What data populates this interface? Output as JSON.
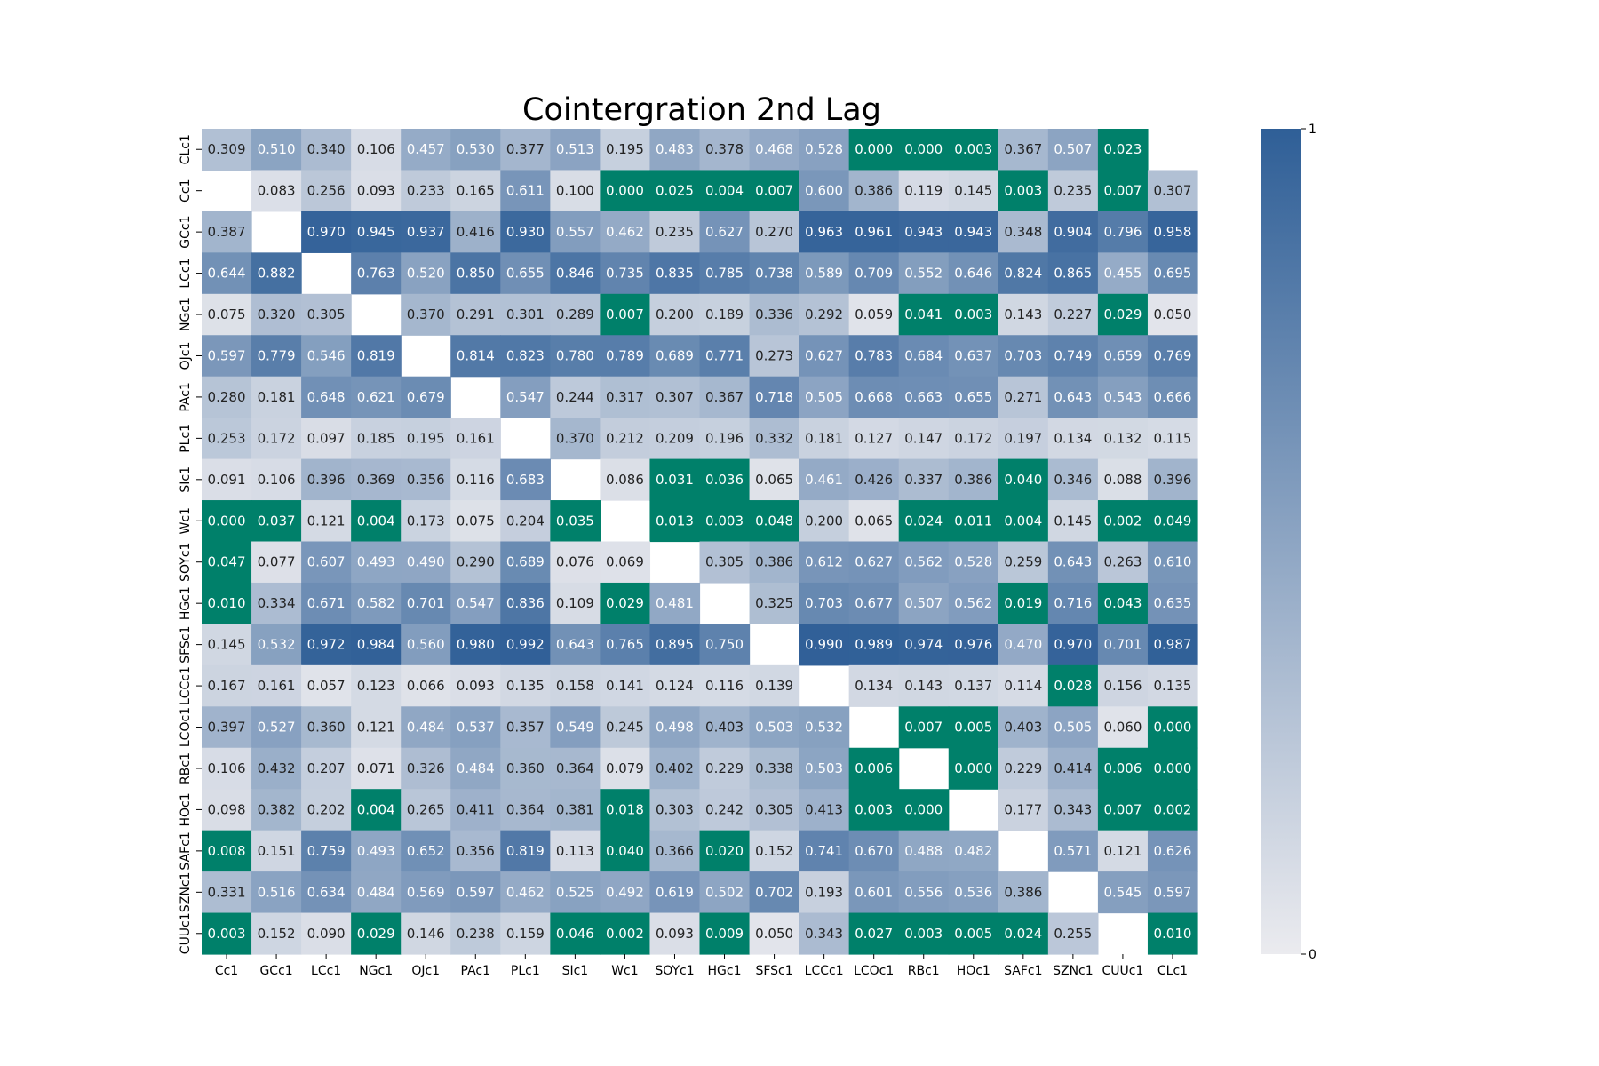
{
  "chart_data": {
    "type": "heatmap",
    "title": "Cointergration 2nd Lag",
    "xlabel": "",
    "ylabel": "",
    "x_labels": [
      "Cc1",
      "GCc1",
      "LCc1",
      "NGc1",
      "OJc1",
      "PAc1",
      "PLc1",
      "SIc1",
      "Wc1",
      "SOYc1",
      "HGc1",
      "SFSc1",
      "LCCc1",
      "LCOc1",
      "RBc1",
      "HOc1",
      "SAFc1",
      "SZNc1",
      "CUUc1",
      "CLc1"
    ],
    "y_labels": [
      "CLc1",
      "Cc1",
      "GCc1",
      "LCc1",
      "NGc1",
      "OJc1",
      "PAc1",
      "PLc1",
      "SIc1",
      "Wc1",
      "SOYc1",
      "HGc1",
      "SFSc1",
      "LCCc1",
      "LCOc1",
      "RBc1",
      "HOc1",
      "SAFc1",
      "SZNc1",
      "CUUc1"
    ],
    "values": [
      [
        "0.309",
        "0.510",
        "0.340",
        "0.106",
        "0.457",
        "0.530",
        "0.377",
        "0.513",
        "0.195",
        "0.483",
        "0.378",
        "0.468",
        "0.528",
        "0.000",
        "0.000",
        "0.003",
        "0.367",
        "0.507",
        "0.023",
        null
      ],
      [
        null,
        "0.083",
        "0.256",
        "0.093",
        "0.233",
        "0.165",
        "0.611",
        "0.100",
        "0.000",
        "0.025",
        "0.004",
        "0.007",
        "0.600",
        "0.386",
        "0.119",
        "0.145",
        "0.003",
        "0.235",
        "0.007",
        "0.307"
      ],
      [
        "0.387",
        null,
        "0.970",
        "0.945",
        "0.937",
        "0.416",
        "0.930",
        "0.557",
        "0.462",
        "0.235",
        "0.627",
        "0.270",
        "0.963",
        "0.961",
        "0.943",
        "0.943",
        "0.348",
        "0.904",
        "0.796",
        "0.958"
      ],
      [
        "0.644",
        "0.882",
        null,
        "0.763",
        "0.520",
        "0.850",
        "0.655",
        "0.846",
        "0.735",
        "0.835",
        "0.785",
        "0.738",
        "0.589",
        "0.709",
        "0.552",
        "0.646",
        "0.824",
        "0.865",
        "0.455",
        "0.695"
      ],
      [
        "0.075",
        "0.320",
        "0.305",
        null,
        "0.370",
        "0.291",
        "0.301",
        "0.289",
        "0.007",
        "0.200",
        "0.189",
        "0.336",
        "0.292",
        "0.059",
        "0.041",
        "0.003",
        "0.143",
        "0.227",
        "0.029",
        "0.050"
      ],
      [
        "0.597",
        "0.779",
        "0.546",
        "0.819",
        null,
        "0.814",
        "0.823",
        "0.780",
        "0.789",
        "0.689",
        "0.771",
        "0.273",
        "0.627",
        "0.783",
        "0.684",
        "0.637",
        "0.703",
        "0.749",
        "0.659",
        "0.769"
      ],
      [
        "0.280",
        "0.181",
        "0.648",
        "0.621",
        "0.679",
        null,
        "0.547",
        "0.244",
        "0.317",
        "0.307",
        "0.367",
        "0.718",
        "0.505",
        "0.668",
        "0.663",
        "0.655",
        "0.271",
        "0.643",
        "0.543",
        "0.666"
      ],
      [
        "0.253",
        "0.172",
        "0.097",
        "0.185",
        "0.195",
        "0.161",
        null,
        "0.370",
        "0.212",
        "0.209",
        "0.196",
        "0.332",
        "0.181",
        "0.127",
        "0.147",
        "0.172",
        "0.197",
        "0.134",
        "0.132",
        "0.115"
      ],
      [
        "0.091",
        "0.106",
        "0.396",
        "0.369",
        "0.356",
        "0.116",
        "0.683",
        null,
        "0.086",
        "0.031",
        "0.036",
        "0.065",
        "0.461",
        "0.426",
        "0.337",
        "0.386",
        "0.040",
        "0.346",
        "0.088",
        "0.396"
      ],
      [
        "0.000",
        "0.037",
        "0.121",
        "0.004",
        "0.173",
        "0.075",
        "0.204",
        "0.035",
        null,
        "0.013",
        "0.003",
        "0.048",
        "0.200",
        "0.065",
        "0.024",
        "0.011",
        "0.004",
        "0.145",
        "0.002",
        "0.049"
      ],
      [
        "0.047",
        "0.077",
        "0.607",
        "0.493",
        "0.490",
        "0.290",
        "0.689",
        "0.076",
        "0.069",
        null,
        "0.305",
        "0.386",
        "0.612",
        "0.627",
        "0.562",
        "0.528",
        "0.259",
        "0.643",
        "0.263",
        "0.610"
      ],
      [
        "0.010",
        "0.334",
        "0.671",
        "0.582",
        "0.701",
        "0.547",
        "0.836",
        "0.109",
        "0.029",
        "0.481",
        null,
        "0.325",
        "0.703",
        "0.677",
        "0.507",
        "0.562",
        "0.019",
        "0.716",
        "0.043",
        "0.635"
      ],
      [
        "0.145",
        "0.532",
        "0.972",
        "0.984",
        "0.560",
        "0.980",
        "0.992",
        "0.643",
        "0.765",
        "0.895",
        "0.750",
        null,
        "0.990",
        "0.989",
        "0.974",
        "0.976",
        "0.470",
        "0.970",
        "0.701",
        "0.987"
      ],
      [
        "0.167",
        "0.161",
        "0.057",
        "0.123",
        "0.066",
        "0.093",
        "0.135",
        "0.158",
        "0.141",
        "0.124",
        "0.116",
        "0.139",
        null,
        "0.134",
        "0.143",
        "0.137",
        "0.114",
        "0.028",
        "0.156",
        "0.135"
      ],
      [
        "0.397",
        "0.527",
        "0.360",
        "0.121",
        "0.484",
        "0.537",
        "0.357",
        "0.549",
        "0.245",
        "0.498",
        "0.403",
        "0.503",
        "0.532",
        null,
        "0.007",
        "0.005",
        "0.403",
        "0.505",
        "0.060",
        "0.000"
      ],
      [
        "0.106",
        "0.432",
        "0.207",
        "0.071",
        "0.326",
        "0.484",
        "0.360",
        "0.364",
        "0.079",
        "0.402",
        "0.229",
        "0.338",
        "0.503",
        "0.006",
        null,
        "0.000",
        "0.229",
        "0.414",
        "0.006",
        "0.000"
      ],
      [
        "0.098",
        "0.382",
        "0.202",
        "0.004",
        "0.265",
        "0.411",
        "0.364",
        "0.381",
        "0.018",
        "0.303",
        "0.242",
        "0.305",
        "0.413",
        "0.003",
        "0.000",
        null,
        "0.177",
        "0.343",
        "0.007",
        "0.002"
      ],
      [
        "0.008",
        "0.151",
        "0.759",
        "0.493",
        "0.652",
        "0.356",
        "0.819",
        "0.113",
        "0.040",
        "0.366",
        "0.020",
        "0.152",
        "0.741",
        "0.670",
        "0.488",
        "0.482",
        null,
        "0.571",
        "0.121",
        "0.626"
      ],
      [
        "0.331",
        "0.516",
        "0.634",
        "0.484",
        "0.569",
        "0.597",
        "0.462",
        "0.525",
        "0.492",
        "0.619",
        "0.502",
        "0.702",
        "0.193",
        "0.601",
        "0.556",
        "0.536",
        "0.386",
        null,
        "0.545",
        "0.597"
      ],
      [
        "0.003",
        "0.152",
        "0.090",
        "0.029",
        "0.146",
        "0.238",
        "0.159",
        "0.046",
        "0.002",
        "0.093",
        "0.009",
        "0.050",
        "0.343",
        "0.027",
        "0.003",
        "0.005",
        "0.024",
        "0.255",
        null,
        "0.010"
      ]
    ],
    "value_range": [
      0,
      1
    ],
    "highlight_below": 0.05,
    "highlight_color": "#00806a",
    "colormap": [
      "#ebebef",
      "#2f5f97"
    ],
    "colorbar": {
      "ticks": [
        "0",
        "1"
      ]
    }
  }
}
